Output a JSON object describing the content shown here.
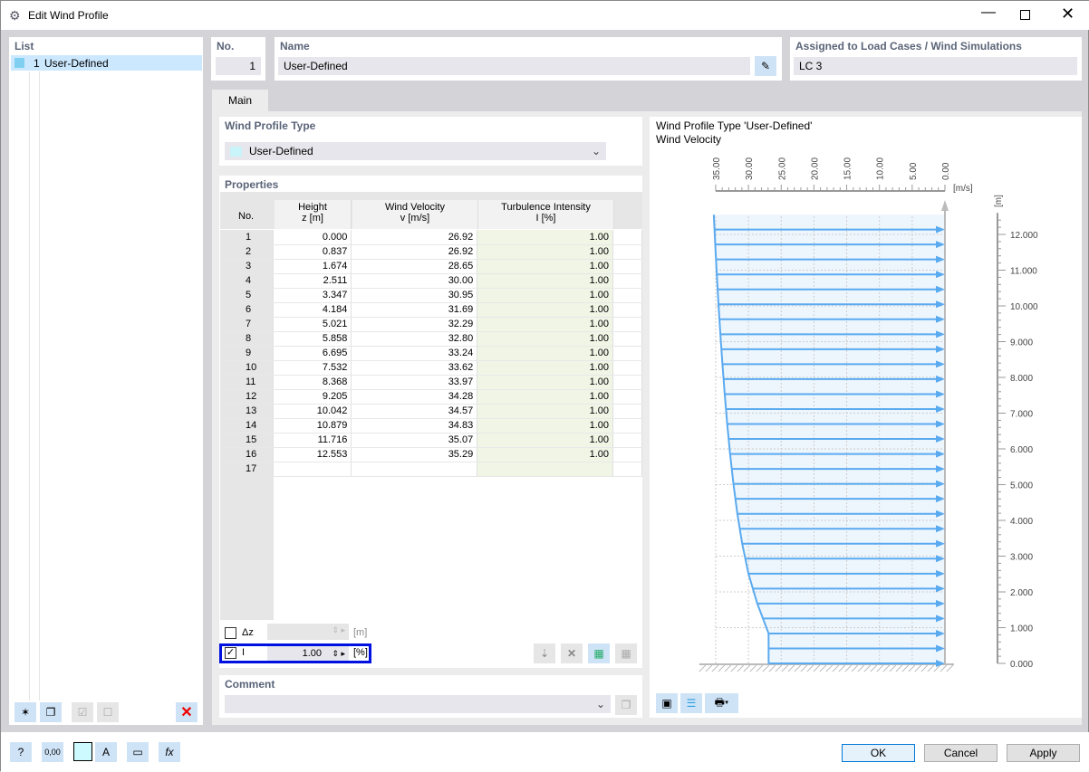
{
  "window": {
    "title": "Edit Wind Profile"
  },
  "list": {
    "header": "List",
    "items": [
      {
        "no": "1",
        "label": "User-Defined"
      }
    ]
  },
  "no": {
    "label": "No.",
    "value": "1"
  },
  "name": {
    "label": "Name",
    "value": "User-Defined"
  },
  "assigned": {
    "label": "Assigned to Load Cases / Wind Simulations",
    "value": "LC 3"
  },
  "tabs": [
    {
      "label": "Main"
    }
  ],
  "profile_type": {
    "label": "Wind Profile Type",
    "value": "User-Defined"
  },
  "properties": {
    "label": "Properties",
    "columns": {
      "no": "No.",
      "height": "Height",
      "height_unit": "z [m]",
      "vel": "Wind Velocity",
      "vel_unit": "v [m/s]",
      "ti": "Turbulence Intensity",
      "ti_unit": "I [%]"
    },
    "rows": [
      [
        "1",
        "0.000",
        "26.92",
        "1.00"
      ],
      [
        "2",
        "0.837",
        "26.92",
        "1.00"
      ],
      [
        "3",
        "1.674",
        "28.65",
        "1.00"
      ],
      [
        "4",
        "2.511",
        "30.00",
        "1.00"
      ],
      [
        "5",
        "3.347",
        "30.95",
        "1.00"
      ],
      [
        "6",
        "4.184",
        "31.69",
        "1.00"
      ],
      [
        "7",
        "5.021",
        "32.29",
        "1.00"
      ],
      [
        "8",
        "5.858",
        "32.80",
        "1.00"
      ],
      [
        "9",
        "6.695",
        "33.24",
        "1.00"
      ],
      [
        "10",
        "7.532",
        "33.62",
        "1.00"
      ],
      [
        "11",
        "8.368",
        "33.97",
        "1.00"
      ],
      [
        "12",
        "9.205",
        "34.28",
        "1.00"
      ],
      [
        "13",
        "10.042",
        "34.57",
        "1.00"
      ],
      [
        "14",
        "10.879",
        "34.83",
        "1.00"
      ],
      [
        "15",
        "11.716",
        "35.07",
        "1.00"
      ],
      [
        "16",
        "12.553",
        "35.29",
        "1.00"
      ],
      [
        "17",
        "",
        "",
        ""
      ]
    ]
  },
  "dz": {
    "label": "Δz",
    "unit": "[m]",
    "checked": false,
    "value": ""
  },
  "ti_field": {
    "label": "I",
    "unit": "[%]",
    "checked": true,
    "value": "1.00"
  },
  "comment": {
    "label": "Comment",
    "value": ""
  },
  "chart_data": {
    "type": "line",
    "title": "Wind Profile Type 'User-Defined'",
    "subtitle": "Wind Velocity",
    "x_unit": "[m/s]",
    "y_unit": "[m]",
    "xlim": [
      35,
      0
    ],
    "ylim": [
      0,
      12.553
    ],
    "x_ticks": [
      "35.00",
      "30.00",
      "25.00",
      "20.00",
      "15.00",
      "10.00",
      "5.00",
      "0.00"
    ],
    "y_ticks": [
      "12.000",
      "11.000",
      "10.000",
      "9.000",
      "8.000",
      "7.000",
      "6.000",
      "5.000",
      "4.000",
      "3.000",
      "2.000",
      "1.000",
      "0.000"
    ],
    "z": [
      0,
      0.837,
      1.674,
      2.511,
      3.347,
      4.184,
      5.021,
      5.858,
      6.695,
      7.532,
      8.368,
      9.205,
      10.042,
      10.879,
      11.716,
      12.553
    ],
    "v": [
      26.92,
      26.92,
      28.65,
      30.0,
      30.95,
      31.69,
      32.29,
      32.8,
      33.24,
      33.62,
      33.97,
      34.28,
      34.57,
      34.83,
      35.07,
      35.29
    ],
    "color": "#5aaaf0"
  },
  "buttons": {
    "ok": "OK",
    "cancel": "Cancel",
    "apply": "Apply"
  }
}
